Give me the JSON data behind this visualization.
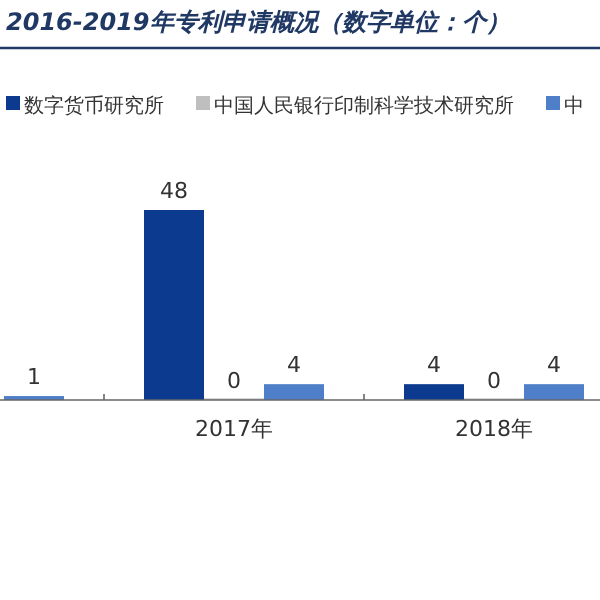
{
  "chart_data": {
    "type": "bar",
    "title": "2016-2019年专利申请概况（数字单位：个）",
    "categories": [
      null,
      "2017年",
      "2018年"
    ],
    "series": [
      {
        "name": "数字货币研究所",
        "color": "#0b3a8f",
        "values": [
          null,
          48,
          4
        ]
      },
      {
        "name": "中国人民银行印制科学技术研究所",
        "color": "#bfbfbf",
        "values": [
          null,
          0,
          0
        ]
      },
      {
        "name": "中",
        "color": "#4f7fc8",
        "values": [
          1,
          4,
          4
        ]
      }
    ],
    "data_labels": true,
    "legend": "top"
  }
}
